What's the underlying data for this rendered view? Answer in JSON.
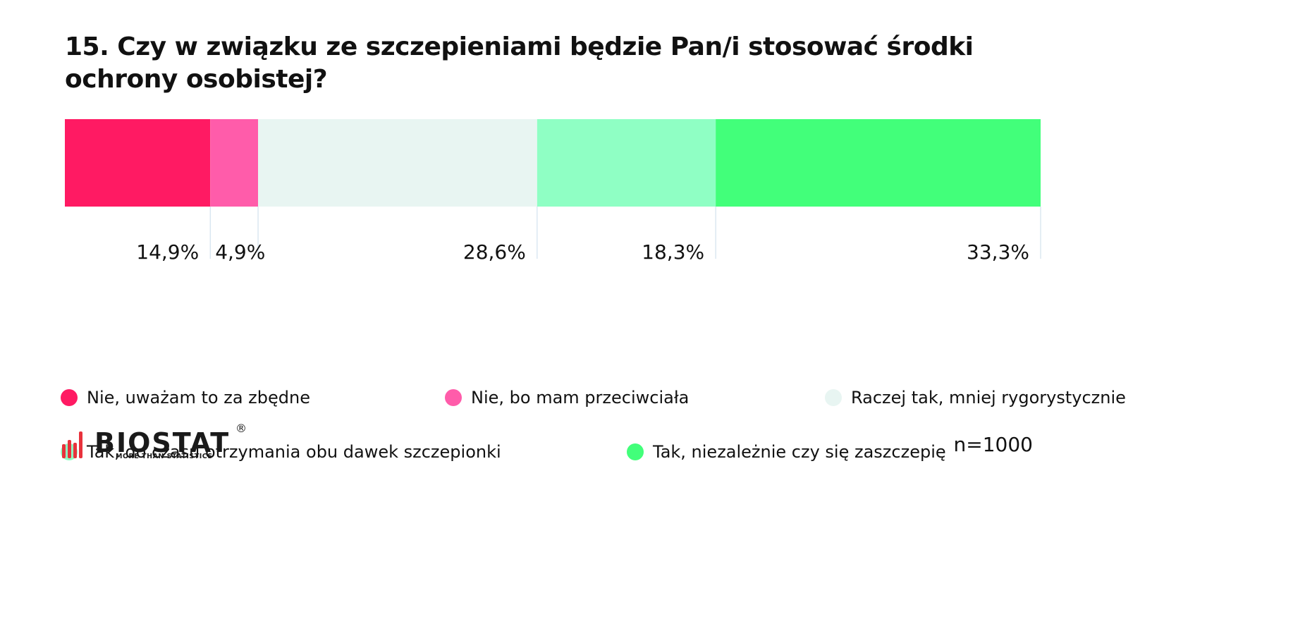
{
  "title": "15. Czy w związku ze szczepieniami będzie Pan/i stosować środki ochrony osobistej?",
  "chart_data": {
    "type": "bar",
    "orientation": "horizontal-stacked-100",
    "title": "15. Czy w związku ze szczepieniami będzie Pan/i stosować środki ochrony osobistej?",
    "series": [
      {
        "name": "Nie, uważam to za zbędne",
        "value": 14.9,
        "label": "14,9%",
        "color": "#ff1a63"
      },
      {
        "name": "Nie, bo mam przeciwciała",
        "value": 4.9,
        "label": "4,9%",
        "color": "#ff5caa"
      },
      {
        "name": "Raczej tak, mniej rygorystycznie",
        "value": 28.6,
        "label": "28,6%",
        "color": "#e8f5f2"
      },
      {
        "name": "Tak, do czasu otrzymania obu dawek szczepionki",
        "value": 18.3,
        "label": "18,3%",
        "color": "#8fffc4"
      },
      {
        "name": "Tak, niezależnie czy się zaszczepię",
        "value": 33.3,
        "label": "33,3%",
        "color": "#42ff7a"
      }
    ],
    "legend_position": "bottom"
  },
  "legend": {
    "items": [
      {
        "label": "Nie, uważam to za zbędne",
        "color": "#ff1a63"
      },
      {
        "label": "Nie, bo mam przeciwciała",
        "color": "#ff5caa"
      },
      {
        "label": "Raczej tak, mniej rygorystycznie",
        "color": "#e8f5f2"
      },
      {
        "label": "Tak, do czasu otrzymania obu dawek szczepionki",
        "color": "#8fffc4"
      },
      {
        "label": "Tak, niezależnie czy się zaszczepię",
        "color": "#42ff7a"
      }
    ]
  },
  "logo": {
    "name": "BIOSTAT",
    "reg": "®",
    "tagline": "MORE THAN STATISTICS",
    "bar_color": "#e8323c"
  },
  "sample": "n=1000"
}
